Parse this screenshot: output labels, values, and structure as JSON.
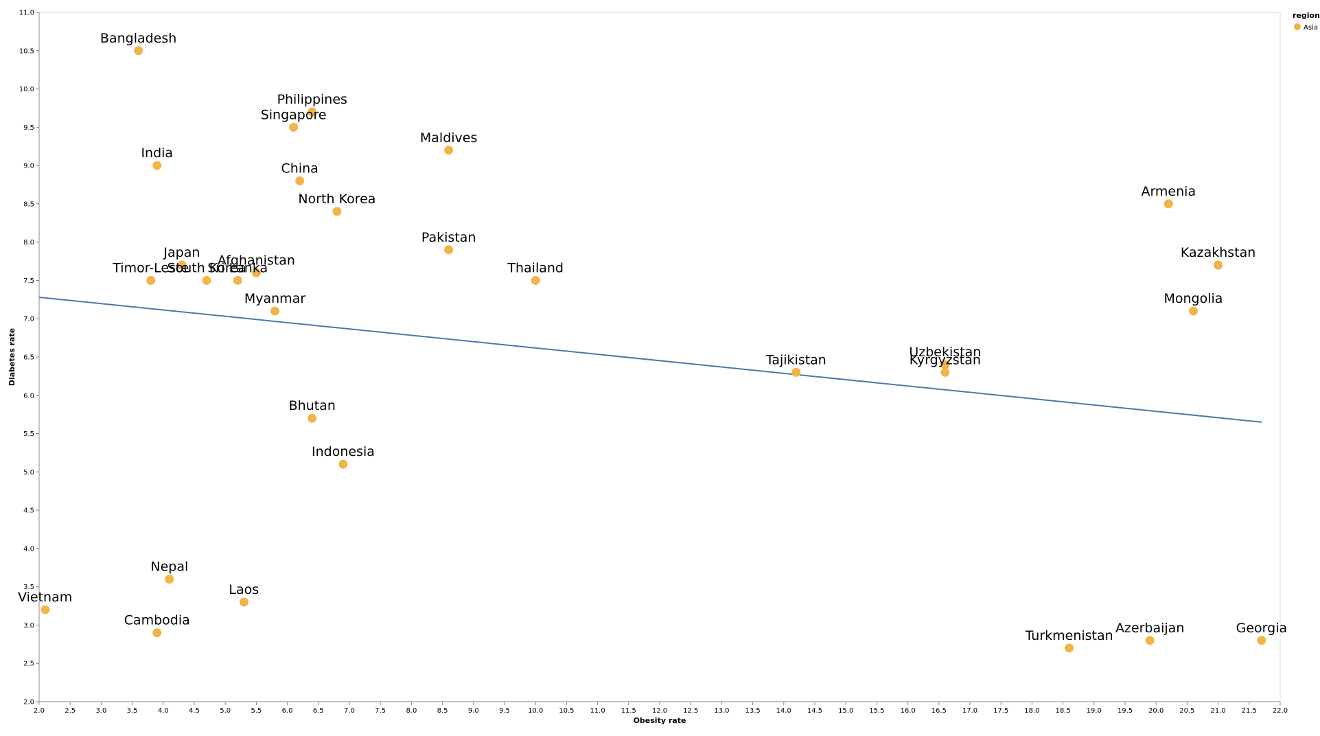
{
  "chart_data": {
    "type": "scatter",
    "title": "",
    "xlabel": "Obesity rate",
    "ylabel": "Diabetes rate",
    "xlim": [
      2.0,
      22.0
    ],
    "ylim": [
      2.0,
      11.0
    ],
    "x_tick_step": 0.5,
    "y_tick_step": 0.5,
    "grid": false,
    "legend": {
      "title": "region",
      "position": "top-right",
      "entries": [
        {
          "label": "Asia",
          "color": "#f2b447"
        }
      ]
    },
    "point_color": "#f2b447",
    "trend_color": "#4c78a8",
    "trend_line": {
      "x": [
        2.0,
        21.7
      ],
      "y": [
        7.28,
        5.65
      ]
    },
    "points": [
      {
        "name": "Bangladesh",
        "x": 3.6,
        "y": 10.5
      },
      {
        "name": "Philippines",
        "x": 6.4,
        "y": 9.7
      },
      {
        "name": "Singapore",
        "x": 6.1,
        "y": 9.5
      },
      {
        "name": "Maldives",
        "x": 8.6,
        "y": 9.2
      },
      {
        "name": "India",
        "x": 3.9,
        "y": 9.0
      },
      {
        "name": "China",
        "x": 6.2,
        "y": 8.8
      },
      {
        "name": "North Korea",
        "x": 6.8,
        "y": 8.4
      },
      {
        "name": "Pakistan",
        "x": 8.6,
        "y": 7.9
      },
      {
        "name": "Japan",
        "x": 4.3,
        "y": 7.7
      },
      {
        "name": "Afghanistan",
        "x": 5.5,
        "y": 7.6
      },
      {
        "name": "Timor-Leste",
        "x": 3.8,
        "y": 7.5
      },
      {
        "name": "South Korea",
        "x": 4.7,
        "y": 7.5
      },
      {
        "name": "Sri Lanka",
        "x": 5.2,
        "y": 7.5
      },
      {
        "name": "Thailand",
        "x": 10.0,
        "y": 7.5
      },
      {
        "name": "Myanmar",
        "x": 5.8,
        "y": 7.1
      },
      {
        "name": "Armenia",
        "x": 20.2,
        "y": 8.5
      },
      {
        "name": "Kazakhstan",
        "x": 21.0,
        "y": 7.7
      },
      {
        "name": "Mongolia",
        "x": 20.6,
        "y": 7.1
      },
      {
        "name": "Tajikistan",
        "x": 14.2,
        "y": 6.3
      },
      {
        "name": "Uzbekistan",
        "x": 16.6,
        "y": 6.4
      },
      {
        "name": "Kyrgyzstan",
        "x": 16.6,
        "y": 6.3
      },
      {
        "name": "Bhutan",
        "x": 6.4,
        "y": 5.7
      },
      {
        "name": "Indonesia",
        "x": 6.9,
        "y": 5.1
      },
      {
        "name": "Nepal",
        "x": 4.1,
        "y": 3.6
      },
      {
        "name": "Laos",
        "x": 5.3,
        "y": 3.3
      },
      {
        "name": "Vietnam",
        "x": 2.1,
        "y": 3.2
      },
      {
        "name": "Cambodia",
        "x": 3.9,
        "y": 2.9
      },
      {
        "name": "Turkmenistan",
        "x": 18.6,
        "y": 2.7
      },
      {
        "name": "Azerbaijan",
        "x": 19.9,
        "y": 2.8
      },
      {
        "name": "Georgia",
        "x": 21.7,
        "y": 2.8
      }
    ]
  }
}
